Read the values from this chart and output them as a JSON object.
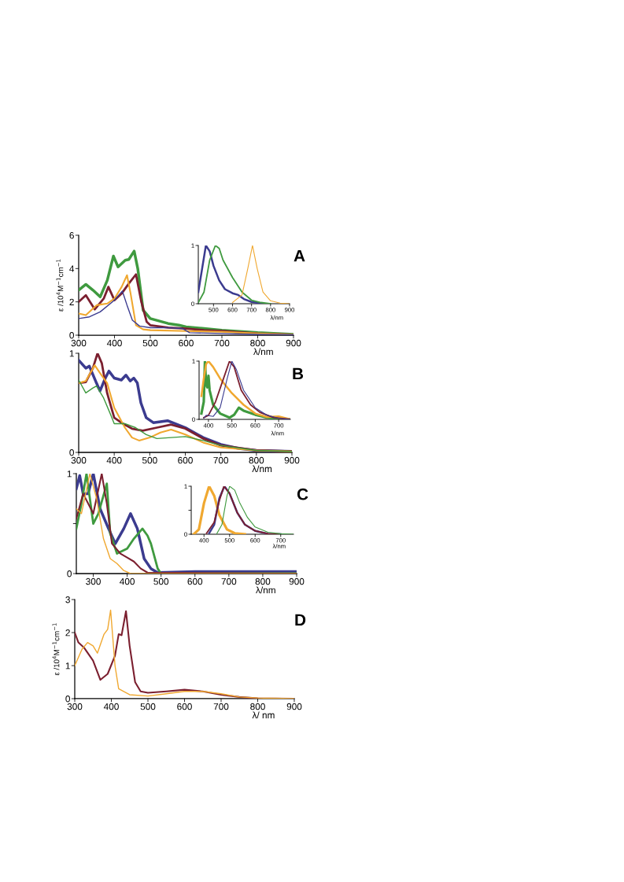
{
  "chart_data": [
    {
      "type": "line",
      "xlim": [
        300,
        900
      ],
      "ylim": [
        0,
        6
      ],
      "xticks": [
        300,
        400,
        500,
        600,
        700,
        800,
        900
      ],
      "yticks": [
        0,
        2,
        4,
        6
      ],
      "xlabel": "λ/nm",
      "ylabel": "ε /10$^{4}$M$^{−1}$cm$^{−1}$",
      "annotations": [
        "A"
      ],
      "series": [
        {
          "color": "#3f9a3f",
          "x": [
            300,
            320,
            340,
            360,
            380,
            397,
            410,
            430,
            440,
            455,
            465,
            480,
            500,
            550,
            580,
            600,
            650,
            700,
            800,
            900
          ],
          "values": [
            2.7,
            3.05,
            2.7,
            2.3,
            3.3,
            4.75,
            4.1,
            4.5,
            4.55,
            5.05,
            4.0,
            1.5,
            1.0,
            0.7,
            0.6,
            0.5,
            0.4,
            0.3,
            0.15,
            0.05
          ]
        },
        {
          "color": "#7b1f2f",
          "x": [
            300,
            320,
            345,
            370,
            383,
            400,
            420,
            440,
            460,
            475,
            490,
            500,
            550,
            600,
            650,
            700,
            800,
            900
          ],
          "values": [
            2.0,
            2.4,
            1.55,
            2.2,
            2.9,
            2.1,
            2.5,
            3.1,
            3.65,
            2.0,
            0.8,
            0.6,
            0.45,
            0.4,
            0.3,
            0.25,
            0.1,
            0.03
          ]
        },
        {
          "color": "#f0a830",
          "x": [
            300,
            320,
            350,
            380,
            400,
            420,
            435,
            445,
            460,
            480,
            500,
            600,
            700,
            800,
            900
          ],
          "values": [
            1.3,
            1.2,
            1.8,
            1.9,
            2.2,
            2.9,
            3.6,
            2.5,
            0.6,
            0.35,
            0.3,
            0.25,
            0.2,
            0.1,
            0.03
          ]
        },
        {
          "color": "#3b3b8f",
          "x": [
            300,
            330,
            360,
            400,
            422,
            435,
            450,
            470,
            500,
            550,
            590,
            610,
            700,
            800,
            900
          ],
          "values": [
            1.0,
            1.1,
            1.4,
            2.1,
            2.65,
            1.8,
            0.9,
            0.55,
            0.45,
            0.45,
            0.4,
            0.15,
            0.1,
            0.05,
            0.03
          ]
        }
      ]
    },
    {
      "type": "line",
      "xlim": [
        420,
        900
      ],
      "ylim": [
        0,
        1
      ],
      "xticks": [
        500,
        600,
        700,
        800,
        900
      ],
      "yticks": [
        0,
        1
      ],
      "xlabel": "λ/nm",
      "series": [
        {
          "color": "#3b3b8f",
          "x": [
            420,
            440,
            460,
            480,
            500,
            530,
            560,
            600,
            630,
            660,
            700,
            760
          ],
          "values": [
            0.2,
            0.6,
            1.0,
            0.9,
            0.65,
            0.4,
            0.25,
            0.18,
            0.15,
            0.08,
            0.03,
            0
          ]
        },
        {
          "color": "#3f9a3f",
          "x": [
            420,
            450,
            480,
            510,
            530,
            550,
            600,
            650,
            700,
            750,
            800
          ],
          "values": [
            0.02,
            0.2,
            0.75,
            1.0,
            0.95,
            0.75,
            0.45,
            0.2,
            0.06,
            0.02,
            0
          ]
        },
        {
          "color": "#f0a830",
          "x": [
            600,
            650,
            680,
            705,
            730,
            760,
            800,
            850,
            900
          ],
          "values": [
            0.02,
            0.15,
            0.6,
            1.0,
            0.6,
            0.2,
            0.05,
            0.01,
            0
          ]
        }
      ]
    },
    {
      "type": "line",
      "xlim": [
        300,
        900
      ],
      "ylim": [
        0,
        1
      ],
      "xticks": [
        300,
        400,
        500,
        600,
        700,
        800,
        900
      ],
      "yticks": [
        0,
        1
      ],
      "xlabel": "λ/nm",
      "annotations": [
        "B"
      ],
      "series": [
        {
          "color": "#3b3b8f",
          "x": [
            300,
            320,
            330,
            350,
            360,
            375,
            385,
            400,
            420,
            433,
            445,
            455,
            465,
            475,
            490,
            510,
            550,
            600,
            650,
            700,
            750,
            800,
            900
          ],
          "values": [
            0.93,
            0.85,
            0.87,
            0.7,
            0.62,
            0.75,
            0.82,
            0.75,
            0.73,
            0.78,
            0.72,
            0.75,
            0.7,
            0.5,
            0.35,
            0.3,
            0.32,
            0.25,
            0.15,
            0.08,
            0.04,
            0.02,
            0.01
          ]
        },
        {
          "color": "#7b1f2f",
          "x": [
            300,
            320,
            340,
            353,
            365,
            380,
            400,
            420,
            450,
            480,
            520,
            560,
            600,
            650,
            700,
            800,
            900
          ],
          "values": [
            0.7,
            0.71,
            0.85,
            1.0,
            0.9,
            0.6,
            0.35,
            0.3,
            0.24,
            0.22,
            0.25,
            0.28,
            0.24,
            0.14,
            0.07,
            0.02,
            0.01
          ]
        },
        {
          "color": "#f0a830",
          "x": [
            300,
            320,
            345,
            360,
            380,
            400,
            430,
            450,
            470,
            500,
            530,
            560,
            600,
            650,
            700,
            800,
            900
          ],
          "values": [
            0.7,
            0.72,
            0.88,
            0.8,
            0.7,
            0.45,
            0.25,
            0.15,
            0.12,
            0.15,
            0.2,
            0.23,
            0.18,
            0.1,
            0.05,
            0.02,
            0.01
          ]
        },
        {
          "color": "#3f9a3f",
          "x": [
            300,
            320,
            340,
            350,
            370,
            390,
            400,
            430,
            460,
            490,
            520,
            560,
            600,
            650,
            700,
            800,
            900
          ],
          "values": [
            0.73,
            0.6,
            0.65,
            0.67,
            0.55,
            0.38,
            0.29,
            0.29,
            0.25,
            0.18,
            0.14,
            0.15,
            0.16,
            0.12,
            0.07,
            0.02,
            0.01
          ]
        }
      ]
    },
    {
      "type": "line",
      "xlim": [
        360,
        750
      ],
      "ylim": [
        0,
        1
      ],
      "xticks": [
        400,
        500,
        600,
        700
      ],
      "yticks": [
        0,
        1
      ],
      "xlabel": "λ/nm",
      "series": [
        {
          "color": "#3f9a3f",
          "x": [
            370,
            380,
            385,
            390,
            395,
            400,
            405,
            420,
            450,
            490,
            510,
            530,
            550,
            600,
            650,
            700,
            750
          ],
          "values": [
            0.1,
            0.3,
            1.0,
            0.6,
            0.55,
            0.75,
            0.5,
            0.25,
            0.1,
            0.03,
            0.08,
            0.2,
            0.15,
            0.08,
            0.03,
            0.01,
            0
          ]
        },
        {
          "color": "#f0a830",
          "x": [
            370,
            380,
            390,
            400,
            420,
            450,
            500,
            550,
            600,
            650,
            700,
            720,
            750
          ],
          "values": [
            0.4,
            0.7,
            0.95,
            1.0,
            0.9,
            0.7,
            0.45,
            0.25,
            0.1,
            0.04,
            0.05,
            0.03,
            0
          ]
        },
        {
          "color": "#7b1f2f",
          "x": [
            380,
            400,
            430,
            460,
            490,
            510,
            540,
            580,
            620,
            680,
            750
          ],
          "values": [
            0.03,
            0.07,
            0.3,
            0.65,
            1.0,
            0.9,
            0.5,
            0.25,
            0.12,
            0.03,
            0
          ]
        },
        {
          "color": "#3b3b8f",
          "x": [
            380,
            390,
            420,
            450,
            480,
            500,
            520,
            550,
            600,
            650,
            700,
            750
          ],
          "values": [
            0.02,
            0.07,
            0.05,
            0.2,
            0.7,
            1.0,
            0.85,
            0.5,
            0.2,
            0.07,
            0.02,
            0
          ]
        }
      ]
    },
    {
      "type": "line",
      "xlim": [
        250,
        900
      ],
      "ylim": [
        0,
        1
      ],
      "xticks": [
        300,
        400,
        500,
        600,
        700,
        800,
        900
      ],
      "yticks": [
        0,
        {
          "value": 0.5,
          "label": null
        },
        1
      ],
      "xlabel": "λ/nm",
      "annotations": [
        "C"
      ],
      "series": [
        {
          "color": "#3b3b8f",
          "x": [
            250,
            260,
            270,
            285,
            300,
            320,
            345,
            365,
            390,
            410,
            430,
            450,
            470,
            490,
            600,
            700,
            800,
            900
          ],
          "values": [
            0.85,
            0.98,
            0.8,
            0.8,
            1.0,
            0.65,
            0.45,
            0.3,
            0.45,
            0.6,
            0.45,
            0.15,
            0.05,
            0.01,
            0.02,
            0.02,
            0.02,
            0.02
          ]
        },
        {
          "color": "#3f9a3f",
          "x": [
            250,
            265,
            280,
            300,
            315,
            340,
            350,
            370,
            400,
            420,
            445,
            460,
            470,
            490,
            500,
            900
          ],
          "values": [
            0.45,
            0.7,
            1.0,
            0.5,
            0.6,
            0.9,
            0.4,
            0.2,
            0.25,
            0.35,
            0.45,
            0.38,
            0.3,
            0.05,
            0.0,
            0.0
          ]
        },
        {
          "color": "#7b1f2f",
          "x": [
            250,
            270,
            300,
            325,
            340,
            355,
            380,
            400,
            420,
            440,
            460,
            900
          ],
          "values": [
            0.55,
            0.8,
            0.6,
            1.0,
            0.7,
            0.3,
            0.2,
            0.16,
            0.12,
            0.05,
            0.01,
            0
          ]
        },
        {
          "color": "#f0a830",
          "x": [
            250,
            265,
            290,
            310,
            330,
            350,
            370,
            390,
            410,
            900
          ],
          "values": [
            0.65,
            0.6,
            1.0,
            0.75,
            0.35,
            0.15,
            0.1,
            0.03,
            0,
            0
          ]
        }
      ]
    },
    {
      "type": "line",
      "xlim": [
        350,
        750
      ],
      "ylim": [
        0,
        1
      ],
      "xticks": [
        400,
        500,
        600,
        700
      ],
      "yticks": [
        0,
        {
          "value": 0.5,
          "label": null
        },
        1
      ],
      "xlabel": "λ/nm",
      "series": [
        {
          "color": "#f0a830",
          "x": [
            360,
            380,
            400,
            420,
            440,
            460,
            490,
            520,
            560
          ],
          "values": [
            0,
            0.1,
            0.65,
            1.0,
            0.8,
            0.4,
            0.1,
            0.02,
            0
          ]
        },
        {
          "color": "#3b3b8f",
          "x": [
            420,
            440,
            460,
            480,
            500,
            530,
            560,
            600,
            650,
            700
          ],
          "values": [
            0.02,
            0.2,
            0.75,
            1.0,
            0.85,
            0.45,
            0.2,
            0.07,
            0.01,
            0
          ]
        },
        {
          "color": "#7b1f2f",
          "x": [
            410,
            440,
            460,
            478,
            500,
            530,
            560,
            600,
            650,
            700
          ],
          "values": [
            0.02,
            0.25,
            0.7,
            1.0,
            0.85,
            0.45,
            0.2,
            0.07,
            0.01,
            0
          ]
        },
        {
          "color": "#3f9a3f",
          "x": [
            450,
            470,
            490,
            500,
            520,
            540,
            570,
            600,
            650,
            700,
            750
          ],
          "values": [
            0.01,
            0.2,
            0.8,
            1.0,
            0.92,
            0.65,
            0.35,
            0.15,
            0.04,
            0.01,
            0
          ]
        }
      ]
    },
    {
      "type": "line",
      "xlim": [
        300,
        900
      ],
      "ylim": [
        0,
        3
      ],
      "xticks": [
        300,
        400,
        500,
        600,
        700,
        800,
        900
      ],
      "yticks": [
        0,
        1,
        2,
        3
      ],
      "xlabel": "λ/ nm",
      "ylabel": "ε /10$^{4}$M$^{−1}$cm$^{−1}$",
      "annotations": [
        "D"
      ],
      "series": [
        {
          "color": "#7b1f2f",
          "x": [
            300,
            310,
            325,
            350,
            370,
            390,
            410,
            420,
            428,
            440,
            450,
            465,
            480,
            500,
            550,
            600,
            650,
            700,
            750,
            800,
            900
          ],
          "values": [
            2.0,
            1.7,
            1.55,
            1.15,
            0.57,
            0.75,
            1.3,
            1.95,
            1.92,
            2.65,
            1.6,
            0.5,
            0.22,
            0.18,
            0.22,
            0.27,
            0.22,
            0.12,
            0.05,
            0.01,
            0
          ]
        },
        {
          "color": "#f0a830",
          "x": [
            300,
            320,
            335,
            350,
            362,
            380,
            390,
            398,
            410,
            420,
            450,
            500,
            550,
            600,
            650,
            700,
            750,
            800,
            900
          ],
          "values": [
            1.0,
            1.5,
            1.7,
            1.6,
            1.38,
            1.95,
            2.1,
            2.68,
            1.0,
            0.3,
            0.12,
            0.08,
            0.15,
            0.22,
            0.22,
            0.15,
            0.05,
            0.02,
            0
          ]
        }
      ]
    }
  ]
}
